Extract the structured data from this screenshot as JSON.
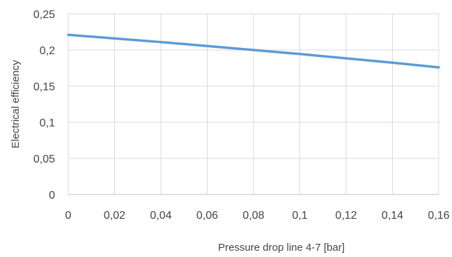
{
  "chart_data": {
    "type": "line",
    "title": "",
    "xlabel": "Pressure drop line 4-7 [bar]",
    "ylabel": "Electrical efficiency",
    "xlim": [
      0,
      0.16
    ],
    "ylim": [
      0,
      0.25
    ],
    "x_ticks": [
      "0",
      "0,02",
      "0,04",
      "0,06",
      "0,08",
      "0,1",
      "0,12",
      "0,14",
      "0,16"
    ],
    "y_ticks": [
      "0",
      "0,05",
      "0,1",
      "0,15",
      "0,2",
      "0,25"
    ],
    "grid": true,
    "legend": "none",
    "series": [
      {
        "color": "#5b9bd5",
        "x": [
          0,
          0.02,
          0.04,
          0.06,
          0.08,
          0.1,
          0.12,
          0.14,
          0.16
        ],
        "y": [
          0.221,
          0.216,
          0.211,
          0.2055,
          0.2,
          0.1945,
          0.1885,
          0.1825,
          0.176
        ]
      }
    ]
  }
}
